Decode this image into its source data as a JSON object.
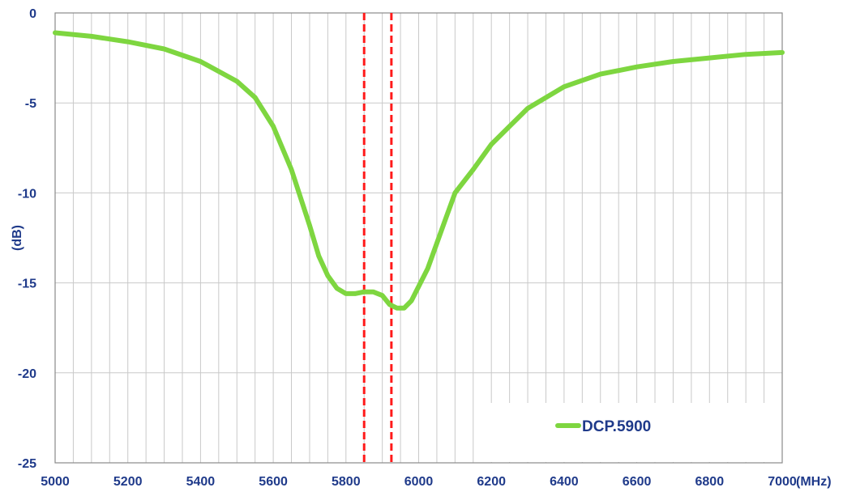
{
  "chart_data": {
    "type": "line",
    "title": "",
    "xlabel": "(MHz)",
    "ylabel": "(dB)",
    "xlim": [
      5000,
      7000
    ],
    "ylim": [
      -25,
      0
    ],
    "x_ticks": [
      5000,
      5200,
      5400,
      5600,
      5800,
      6000,
      6200,
      6400,
      6600,
      6800,
      7000
    ],
    "y_ticks": [
      0,
      -5,
      -10,
      -15,
      -20,
      -25
    ],
    "grid": true,
    "legend_position": "bottom-right",
    "series": [
      {
        "name": "DCP.5900",
        "color": "#7ed640",
        "x": [
          5000,
          5100,
          5200,
          5300,
          5400,
          5500,
          5550,
          5600,
          5650,
          5700,
          5725,
          5750,
          5775,
          5800,
          5825,
          5850,
          5875,
          5900,
          5920,
          5940,
          5960,
          5980,
          5990,
          6000,
          6025,
          6050,
          6075,
          6100,
          6150,
          6200,
          6250,
          6300,
          6400,
          6500,
          6600,
          6700,
          6800,
          6900,
          7000
        ],
        "y": [
          -1.1,
          -1.3,
          -1.6,
          -2.0,
          -2.7,
          -3.8,
          -4.7,
          -6.3,
          -8.7,
          -11.8,
          -13.5,
          -14.6,
          -15.3,
          -15.6,
          -15.6,
          -15.5,
          -15.5,
          -15.7,
          -16.2,
          -16.4,
          -16.4,
          -16.0,
          -15.6,
          -15.2,
          -14.2,
          -12.8,
          -11.4,
          -10.0,
          -8.7,
          -7.3,
          -6.3,
          -5.3,
          -4.1,
          -3.4,
          -3.0,
          -2.7,
          -2.5,
          -2.3,
          -2.2
        ]
      }
    ],
    "markers": [
      {
        "x": 5850,
        "color": "#ff1a1a",
        "style": "dashed"
      },
      {
        "x": 5925,
        "color": "#ff1a1a",
        "style": "dashed"
      }
    ]
  }
}
